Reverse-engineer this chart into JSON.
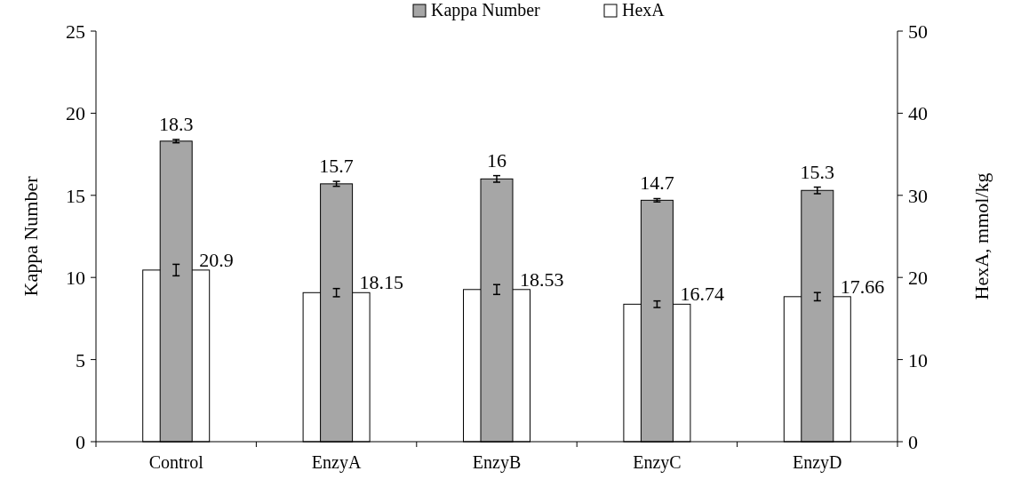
{
  "chart_data": {
    "type": "bar",
    "ylabel": "Kappa Number",
    "y2label": "HexA, mmol/kg",
    "categories": [
      "Control",
      "EnzyA",
      "EnzyB",
      "EnzyC",
      "EnzyD"
    ],
    "series": [
      {
        "name": "Kappa Number",
        "color": "#a6a6a6",
        "values": [
          18.3,
          15.7,
          16,
          14.7,
          15.3
        ],
        "errors": [
          0.1,
          0.15,
          0.2,
          0.1,
          0.2
        ]
      },
      {
        "name": "HexA",
        "color": "#ffffff",
        "axis": "y2",
        "values": [
          20.9,
          18.15,
          18.53,
          16.74,
          17.66
        ],
        "errors": [
          0.7,
          0.5,
          0.6,
          0.4,
          0.5
        ]
      }
    ],
    "ylim": [
      0,
      25
    ],
    "yticks": [
      0,
      5,
      10,
      15,
      20,
      25
    ],
    "y2lim": [
      0,
      50
    ],
    "y2ticks": [
      0,
      10,
      20,
      30,
      40,
      50
    ],
    "data_labels": true,
    "legend": "top",
    "grid": false
  }
}
